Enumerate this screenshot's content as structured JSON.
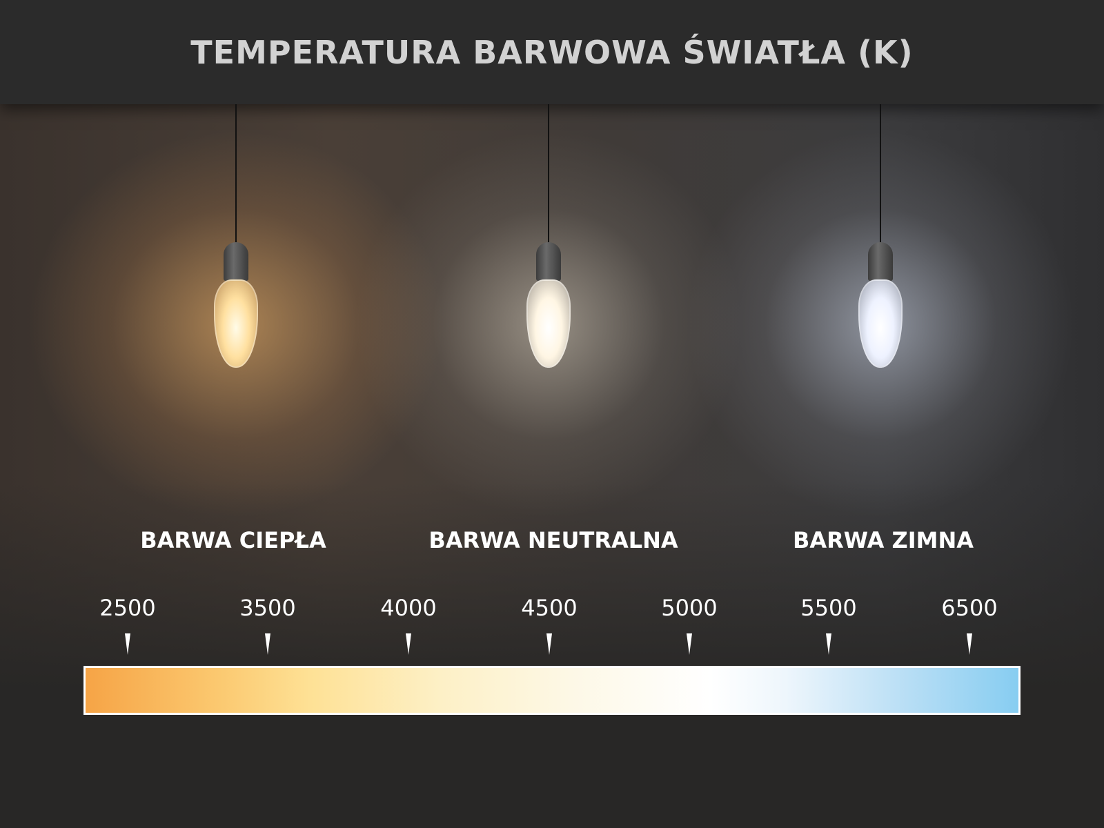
{
  "title": "TEMPERATURA BARWOWA ŚWIATŁA (K)",
  "sections": [
    {
      "label": "BARWA CIEPŁA",
      "glow_color": "#ffbe6e"
    },
    {
      "label": "BARWA NEUTRALNA",
      "glow_color": "#fff5e1"
    },
    {
      "label": "BARWA ZIMNA",
      "glow_color": "#e1ebff"
    }
  ],
  "scale": {
    "unit": "K",
    "ticks": [
      "2500",
      "3500",
      "4000",
      "4500",
      "5000",
      "5500",
      "6500"
    ],
    "gradient_colors": [
      "#f6a446",
      "#fee195",
      "#fdf8e6",
      "#ffffff",
      "#87cdf1"
    ]
  }
}
